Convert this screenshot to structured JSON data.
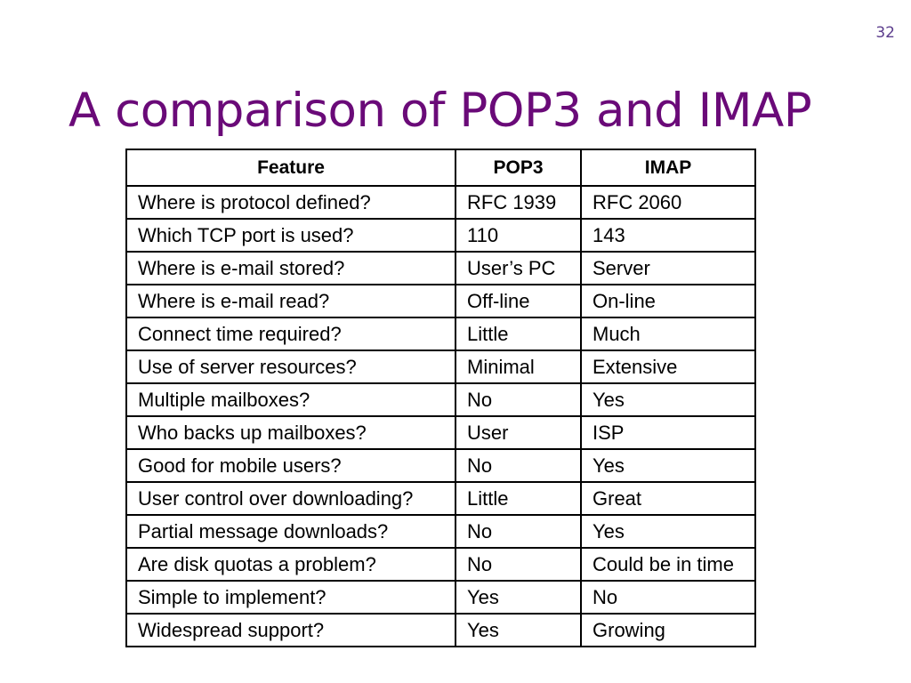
{
  "slide": {
    "number": "32",
    "title": "A comparison of POP3 and IMAP"
  },
  "table": {
    "headers": [
      "Feature",
      "POP3",
      "IMAP"
    ],
    "rows": [
      [
        "Where is protocol defined?",
        "RFC 1939",
        "RFC 2060"
      ],
      [
        "Which TCP port is used?",
        "110",
        "143"
      ],
      [
        "Where is e-mail stored?",
        "User’s PC",
        "Server"
      ],
      [
        "Where is e-mail read?",
        "Off-line",
        "On-line"
      ],
      [
        "Connect time required?",
        "Little",
        "Much"
      ],
      [
        "Use of server resources?",
        "Minimal",
        "Extensive"
      ],
      [
        "Multiple mailboxes?",
        "No",
        "Yes"
      ],
      [
        "Who backs up mailboxes?",
        "User",
        "ISP"
      ],
      [
        "Good for mobile users?",
        "No",
        "Yes"
      ],
      [
        "User control over downloading?",
        "Little",
        "Great"
      ],
      [
        "Partial message downloads?",
        "No",
        "Yes"
      ],
      [
        "Are disk quotas a problem?",
        "No",
        "Could be in time"
      ],
      [
        "Simple to implement?",
        "Yes",
        "No"
      ],
      [
        "Widespread support?",
        "Yes",
        "Growing"
      ]
    ]
  }
}
